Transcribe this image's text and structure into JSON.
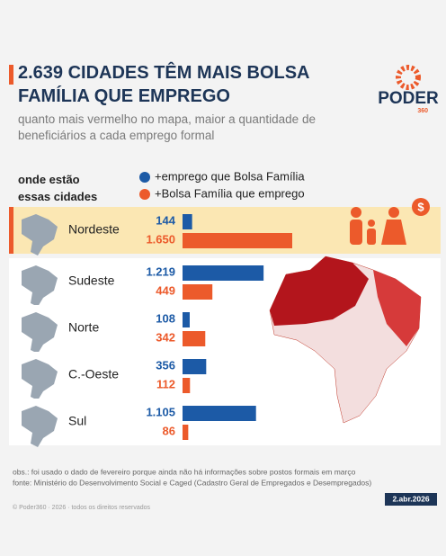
{
  "chart_data": {
    "type": "bar",
    "title": "2.639 CIDADES TÊM MAIS BOLSA FAMÍLIA QUE EMPREGO",
    "subtitle": "quanto mais vermelho no mapa, maior a quantidade de beneficiários a cada emprego formal",
    "category_header": "onde estão essas cidades",
    "categories": [
      "Nordeste",
      "Sudeste",
      "Norte",
      "C.-Oeste",
      "Sul"
    ],
    "highlight": "Nordeste",
    "series": [
      {
        "name": "+emprego que Bolsa Família",
        "color": "#1c5aa6",
        "values": [
          144,
          1219,
          108,
          356,
          1105
        ],
        "value_labels": [
          "144",
          "1.219",
          "108",
          "356",
          "1.105"
        ]
      },
      {
        "name": "+Bolsa Família que emprego",
        "color": "#ec5a2b",
        "values": [
          1650,
          449,
          342,
          112,
          86
        ],
        "value_labels": [
          "1.650",
          "449",
          "342",
          "112",
          "86"
        ]
      }
    ]
  },
  "brand": {
    "name": "PODER",
    "number": "360"
  },
  "footer": {
    "note": "obs.: foi usado o dado de fevereiro porque ainda não há informações sobre postos formais em março",
    "source": "fonte: Ministério do Desenvolvimento Social e Caged (Cadastro Geral de Empregados e Desempregados)",
    "copyright": "© Poder360 · 2026 · todos os direitos reservados",
    "date": "2.abr.2026"
  }
}
